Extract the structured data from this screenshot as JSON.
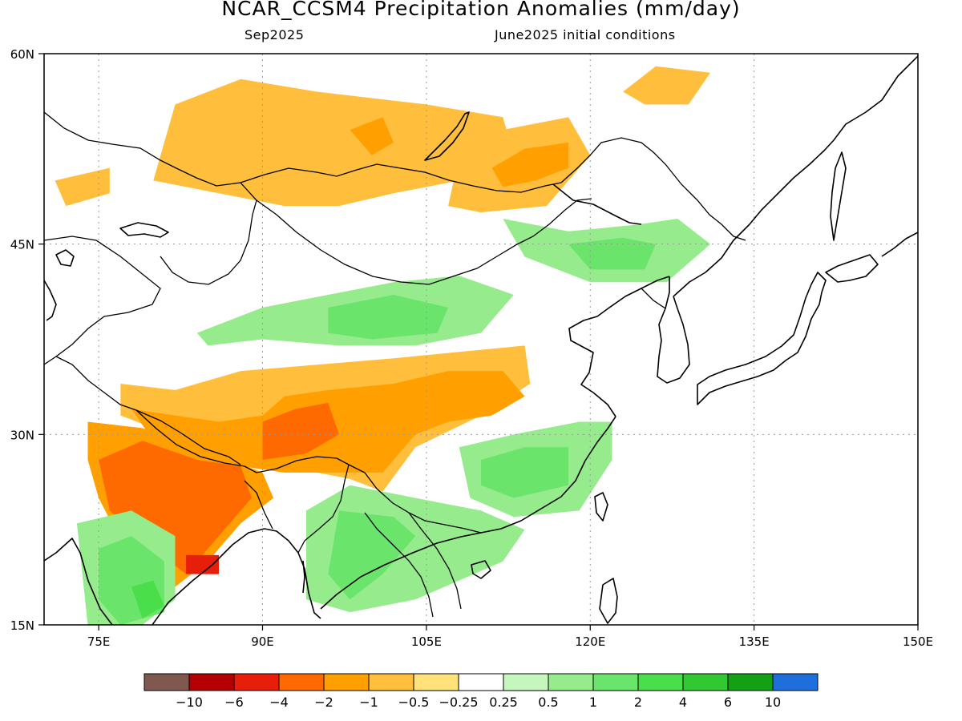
{
  "title": "NCAR_CCSM4 Precipitation Anomalies (mm/day)",
  "subtitle_left": "Sep2025",
  "subtitle_right": "June2025 initial conditions",
  "map": {
    "lon_range": [
      70,
      150
    ],
    "lat_range": [
      15,
      60
    ],
    "lon_ticks": [
      "75E",
      "90E",
      "105E",
      "120E",
      "135E",
      "150E"
    ],
    "lat_ticks": [
      "60N",
      "45N",
      "30N",
      "15N"
    ],
    "grid": "dotted"
  },
  "colorbar": {
    "colors": [
      "#7f584e",
      "#b40000",
      "#e61e0a",
      "#ff6a00",
      "#ffa000",
      "#ffbe3c",
      "#ffe27a",
      "#ffffff",
      "#c4f7be",
      "#96ec8c",
      "#6be46b",
      "#4ade4a",
      "#32c832",
      "#14a014",
      "#1e6edc"
    ],
    "labels": [
      "-10",
      "-6",
      "-4",
      "-2",
      "-1",
      "-0.5",
      "-0.25",
      "0.25",
      "0.5",
      "1",
      "2",
      "4",
      "6",
      "10"
    ]
  },
  "chart_data": {
    "type": "heatmap",
    "title": "NCAR_CCSM4 Precipitation Anomalies (mm/day)",
    "xlim": [
      70,
      150
    ],
    "ylim": [
      15,
      60
    ],
    "levels": [
      -10,
      -6,
      -4,
      -2,
      -1,
      -0.5,
      -0.25,
      0.25,
      0.5,
      1,
      2,
      4,
      6,
      10
    ],
    "regions": [
      {
        "level": -0.5,
        "lon_lat": [
          [
            77,
            34
          ],
          [
            82,
            33.5
          ],
          [
            88,
            35
          ],
          [
            95,
            35.5
          ],
          [
            102,
            36
          ],
          [
            108,
            36.5
          ],
          [
            114,
            37
          ],
          [
            114.5,
            34
          ],
          [
            110,
            31.5
          ],
          [
            104,
            29
          ],
          [
            101,
            25.5
          ],
          [
            98,
            26.5
          ],
          [
            95,
            27
          ],
          [
            90,
            27.5
          ],
          [
            86,
            28.5
          ],
          [
            83,
            29
          ],
          [
            80,
            30.5
          ],
          [
            77,
            31.5
          ]
        ]
      },
      {
        "level": -1,
        "lon_lat": [
          [
            78,
            32
          ],
          [
            82,
            31.5
          ],
          [
            86,
            31
          ],
          [
            90,
            31.5
          ],
          [
            92,
            33
          ],
          [
            96,
            33.5
          ],
          [
            102,
            34
          ],
          [
            107,
            35
          ],
          [
            112,
            35
          ],
          [
            114,
            33
          ],
          [
            111,
            31.5
          ],
          [
            107,
            31
          ],
          [
            104,
            30
          ],
          [
            101,
            27
          ],
          [
            97,
            27
          ],
          [
            92,
            27
          ],
          [
            88,
            27.5
          ],
          [
            84,
            28.5
          ],
          [
            80,
            29.5
          ]
        ]
      },
      {
        "level": -2,
        "lon_lat": [
          [
            90,
            31
          ],
          [
            93,
            32
          ],
          [
            96,
            32.5
          ],
          [
            97,
            30
          ],
          [
            94,
            28.5
          ],
          [
            90,
            28
          ]
        ]
      },
      {
        "level": -1,
        "lon_lat": [
          [
            74,
            31
          ],
          [
            79,
            30.5
          ],
          [
            84,
            29
          ],
          [
            90,
            27
          ],
          [
            91,
            25
          ],
          [
            88,
            23
          ],
          [
            85,
            20
          ],
          [
            82,
            18
          ],
          [
            78,
            20
          ],
          [
            75,
            25
          ],
          [
            74,
            28
          ]
        ]
      },
      {
        "level": -2,
        "lon_lat": [
          [
            75,
            28
          ],
          [
            79,
            29.5
          ],
          [
            84,
            28
          ],
          [
            88,
            27.5
          ],
          [
            89,
            25
          ],
          [
            86,
            22
          ],
          [
            83,
            19
          ],
          [
            80,
            21
          ],
          [
            76,
            24
          ]
        ]
      },
      {
        "level": -4,
        "lon_lat": [
          [
            83,
            20.5
          ],
          [
            86,
            20.5
          ],
          [
            86,
            19
          ],
          [
            83,
            19
          ]
        ]
      },
      {
        "level": -0.5,
        "lon_lat": [
          [
            82,
            56
          ],
          [
            88,
            58
          ],
          [
            95,
            57
          ],
          [
            105,
            56
          ],
          [
            112,
            55
          ],
          [
            113,
            52
          ],
          [
            108,
            50
          ],
          [
            102,
            49
          ],
          [
            97,
            48
          ],
          [
            92,
            48
          ],
          [
            86,
            49
          ],
          [
            80,
            50
          ]
        ]
      },
      {
        "level": -1,
        "lon_lat": [
          [
            98,
            54
          ],
          [
            101,
            55
          ],
          [
            102,
            53
          ],
          [
            100,
            52
          ]
        ]
      },
      {
        "level": -0.5,
        "lon_lat": [
          [
            108,
            52
          ],
          [
            112,
            54
          ],
          [
            118,
            55
          ],
          [
            120,
            52
          ],
          [
            116,
            48
          ],
          [
            110,
            47.5
          ],
          [
            107,
            48
          ]
        ]
      },
      {
        "level": -1,
        "lon_lat": [
          [
            111,
            51
          ],
          [
            114,
            52.5
          ],
          [
            118,
            53
          ],
          [
            118,
            51
          ],
          [
            115,
            50
          ],
          [
            112,
            49.5
          ]
        ]
      },
      {
        "level": -0.5,
        "lon_lat": [
          [
            71,
            50
          ],
          [
            76,
            51
          ],
          [
            76,
            49
          ],
          [
            72,
            48
          ]
        ]
      },
      {
        "level": -0.5,
        "lon_lat": [
          [
            123,
            57
          ],
          [
            126,
            59
          ],
          [
            131,
            58.5
          ],
          [
            129,
            56
          ],
          [
            125,
            56
          ]
        ]
      },
      {
        "level": 0.5,
        "lon_lat": [
          [
            84,
            38
          ],
          [
            90,
            40
          ],
          [
            96,
            41
          ],
          [
            102,
            42
          ],
          [
            108,
            42.5
          ],
          [
            113,
            41
          ],
          [
            110,
            38
          ],
          [
            104,
            37
          ],
          [
            97,
            37
          ],
          [
            90,
            37.5
          ],
          [
            85,
            37
          ]
        ]
      },
      {
        "level": 1,
        "lon_lat": [
          [
            96,
            40
          ],
          [
            102,
            41
          ],
          [
            107,
            40
          ],
          [
            106,
            38
          ],
          [
            100,
            37.5
          ],
          [
            96,
            38
          ]
        ]
      },
      {
        "level": 0.5,
        "lon_lat": [
          [
            112,
            47
          ],
          [
            118,
            46
          ],
          [
            124,
            46.5
          ],
          [
            128,
            47
          ],
          [
            131,
            45
          ],
          [
            127,
            42
          ],
          [
            120,
            42
          ],
          [
            114,
            44
          ]
        ]
      },
      {
        "level": 1,
        "lon_lat": [
          [
            118,
            45
          ],
          [
            123,
            45.5
          ],
          [
            126,
            45
          ],
          [
            125,
            43
          ],
          [
            120,
            43
          ]
        ]
      },
      {
        "level": 0.5,
        "lon_lat": [
          [
            108,
            29
          ],
          [
            113,
            30
          ],
          [
            119,
            31
          ],
          [
            122,
            31
          ],
          [
            122,
            28
          ],
          [
            119,
            24
          ],
          [
            113,
            23.5
          ],
          [
            109,
            25
          ]
        ]
      },
      {
        "level": 1,
        "lon_lat": [
          [
            110,
            28
          ],
          [
            114,
            29
          ],
          [
            118,
            29
          ],
          [
            118,
            26
          ],
          [
            113,
            25
          ],
          [
            110,
            26
          ]
        ]
      },
      {
        "level": 0.5,
        "lon_lat": [
          [
            94,
            24
          ],
          [
            98,
            26
          ],
          [
            104,
            25
          ],
          [
            110,
            24
          ],
          [
            114,
            22.5
          ],
          [
            112,
            20
          ],
          [
            104,
            17
          ],
          [
            98,
            16
          ],
          [
            94,
            17
          ]
        ]
      },
      {
        "level": 1,
        "lon_lat": [
          [
            97,
            24
          ],
          [
            102,
            23.5
          ],
          [
            104,
            22
          ],
          [
            101,
            19
          ],
          [
            98,
            17
          ],
          [
            96,
            19
          ]
        ]
      },
      {
        "level": 0.5,
        "lon_lat": [
          [
            73,
            23
          ],
          [
            78,
            24
          ],
          [
            82,
            22
          ],
          [
            82,
            17
          ],
          [
            79,
            15
          ],
          [
            74,
            15
          ]
        ]
      },
      {
        "level": 1,
        "lon_lat": [
          [
            75,
            21
          ],
          [
            78,
            22
          ],
          [
            81,
            20
          ],
          [
            81,
            16
          ],
          [
            77,
            15
          ],
          [
            75,
            17
          ]
        ]
      },
      {
        "level": 2,
        "lon_lat": [
          [
            78,
            18
          ],
          [
            80,
            18.5
          ],
          [
            81,
            16.5
          ],
          [
            79,
            15.5
          ]
        ]
      }
    ]
  }
}
